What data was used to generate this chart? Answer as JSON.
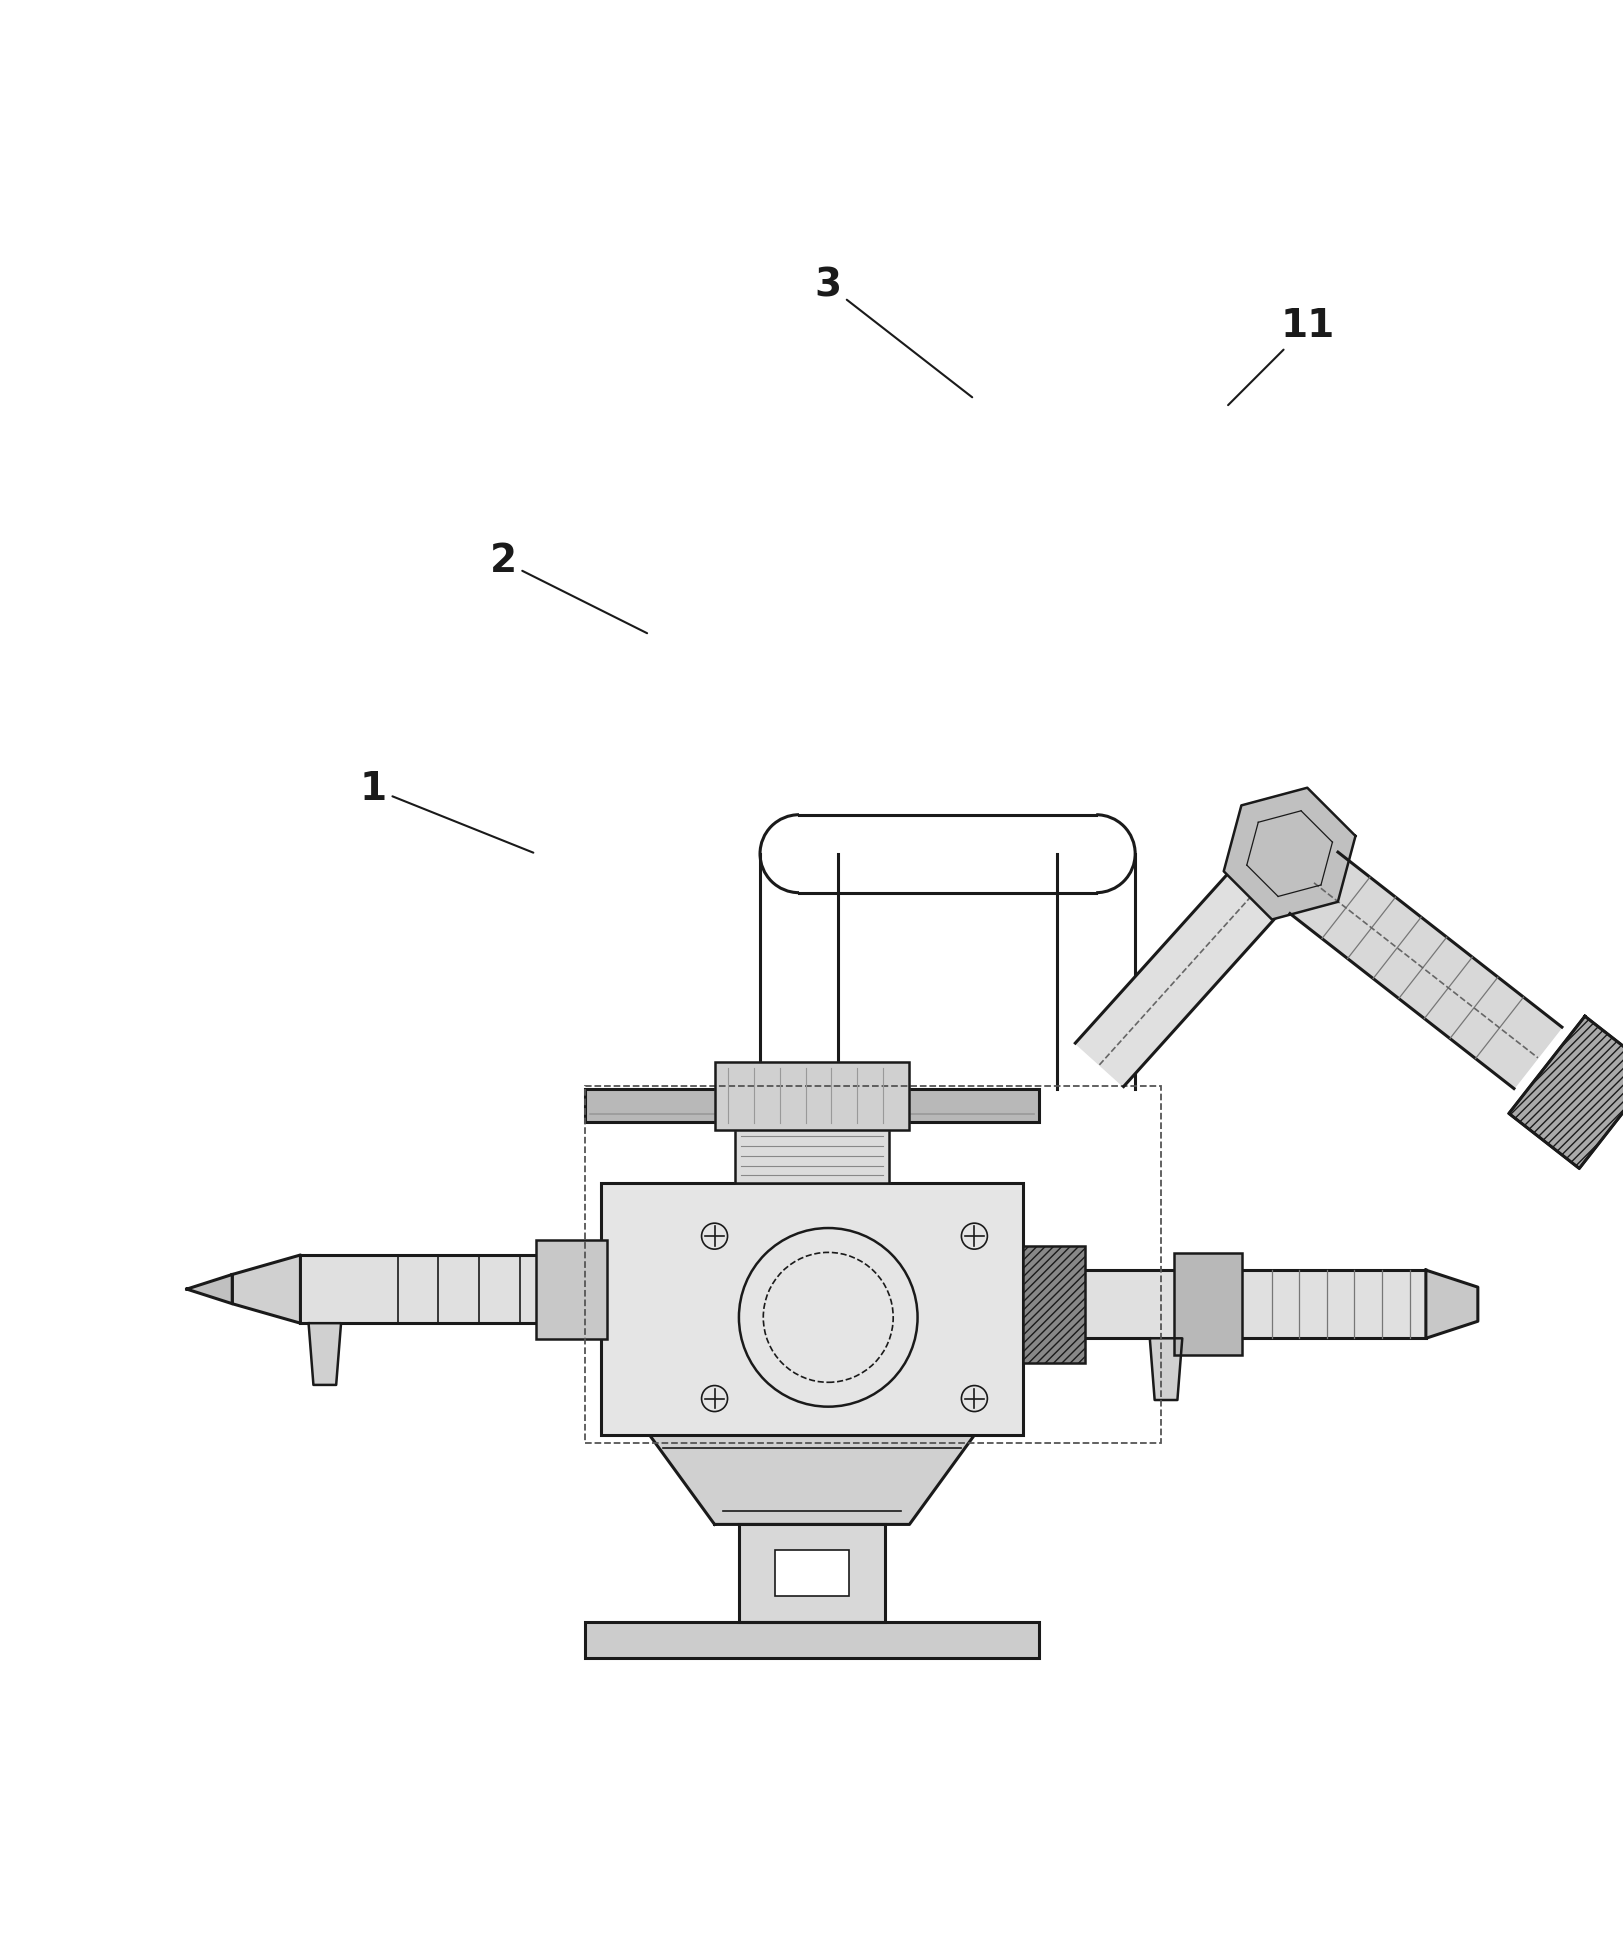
{
  "bg_color": "#ffffff",
  "line_color": "#1a1a1a",
  "label_color": "#1a1a1a",
  "label_fontsize": 28,
  "annotation_lw": 1.5,
  "lw_main": 1.8,
  "lw_thick": 2.2,
  "lw_thin": 1.2
}
